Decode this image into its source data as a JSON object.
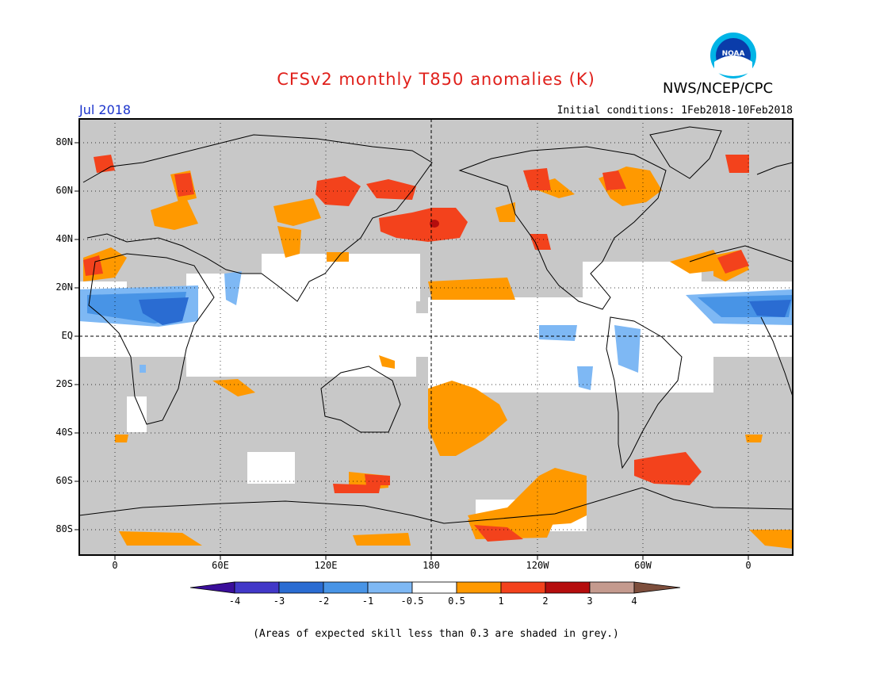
{
  "header": {
    "title": "CFSv2 monthly T850 anomalies (K)",
    "agency": "NWS/NCEP/CPC",
    "month": "Jul 2018",
    "initial_conditions": "Initial conditions: 1Feb2018-10Feb2018",
    "logo_text": "NOAA"
  },
  "map": {
    "lat_labels": [
      "80N",
      "60N",
      "40N",
      "20N",
      "EQ",
      "20S",
      "40S",
      "60S",
      "80S"
    ],
    "lon_labels": [
      "0",
      "60E",
      "120E",
      "180",
      "120W",
      "60W",
      "0"
    ],
    "background_grey": "#c8c8c8",
    "graticule": "dotted 20-degree grid, dashed equator and dateline"
  },
  "colorbar": {
    "ticks": [
      "-4",
      "-3",
      "-2",
      "-1",
      "-0.5",
      "0.5",
      "1",
      "2",
      "3",
      "4"
    ],
    "colors": [
      "#3a0e9a",
      "#4238c8",
      "#2a6cd2",
      "#4894e6",
      "#7eb8f4",
      "#ffffff",
      "#ff9900",
      "#f3421c",
      "#b50d0d",
      "#c49a8e",
      "#7d4e3c"
    ]
  },
  "footer": {
    "note": "(Areas of expected skill less than 0.3 are shaded in grey.)"
  }
}
